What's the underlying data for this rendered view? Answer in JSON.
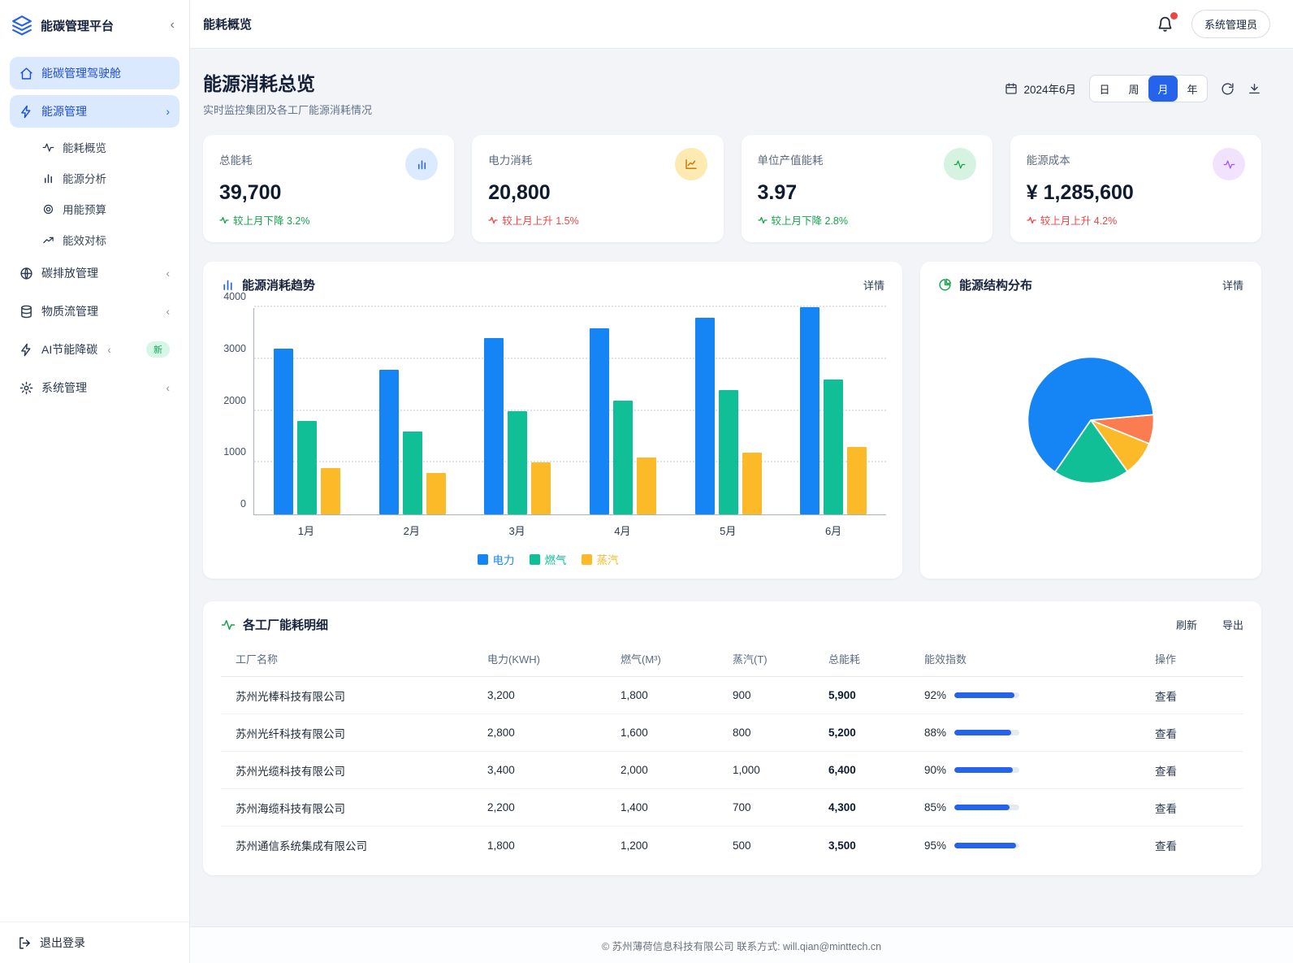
{
  "app": {
    "title": "能碳管理平台"
  },
  "topbar": {
    "page_title": "能耗概览",
    "user": "系统管理员"
  },
  "sidebar": {
    "items": [
      {
        "id": "dashboard",
        "label": "能碳管理驾驶舱",
        "icon": "home",
        "level": 0,
        "active": true
      },
      {
        "id": "energy",
        "label": "能源管理",
        "icon": "bolt",
        "level": 0,
        "active": true,
        "chevron": "right"
      },
      {
        "id": "energy-overview",
        "label": "能耗概览",
        "icon": "activity",
        "level": 1
      },
      {
        "id": "energy-analysis",
        "label": "能源分析",
        "icon": "bars",
        "level": 1
      },
      {
        "id": "energy-budget",
        "label": "用能预算",
        "icon": "target",
        "level": 1
      },
      {
        "id": "efficiency-benchmark",
        "label": "能效对标",
        "icon": "trend",
        "level": 1
      },
      {
        "id": "carbon",
        "label": "碳排放管理",
        "icon": "globe",
        "level": 0,
        "chevron": "left"
      },
      {
        "id": "material-flow",
        "label": "物质流管理",
        "icon": "db",
        "level": 0,
        "chevron": "left"
      },
      {
        "id": "ai-saving",
        "label": "AI节能降碳",
        "icon": "bolt",
        "level": 0,
        "chevron": "left",
        "badge": "新"
      },
      {
        "id": "system",
        "label": "系统管理",
        "icon": "gear",
        "level": 0,
        "chevron": "left"
      }
    ],
    "logout": "退出登录"
  },
  "header": {
    "title": "能源消耗总览",
    "subtitle": "实时监控集团及各工厂能源消耗情况",
    "date": "2024年6月",
    "range_options": [
      "日",
      "周",
      "月",
      "年"
    ],
    "selected_range": "月"
  },
  "kpis": [
    {
      "label": "总能耗",
      "value": "39,700",
      "delta": "较上月下降 3.2%",
      "direction": "down",
      "icon": "bars",
      "icon_bg": "#dbeafe",
      "icon_color": "#2563eb"
    },
    {
      "label": "电力消耗",
      "value": "20,800",
      "delta": "较上月上升 1.5%",
      "direction": "up",
      "icon": "line",
      "icon_bg": "#fdeab0",
      "icon_color": "#c97a10"
    },
    {
      "label": "单位产值能耗",
      "value": "3.97",
      "delta": "较上月下降 2.8%",
      "direction": "down",
      "icon": "activity",
      "icon_bg": "#d5f3e0",
      "icon_color": "#16a34a"
    },
    {
      "label": "能源成本",
      "value": "¥ 1,285,600",
      "delta": "较上月上升 4.2%",
      "direction": "up",
      "icon": "activity",
      "icon_bg": "#f1e3fd",
      "icon_color": "#a855f7"
    }
  ],
  "chart_data": [
    {
      "type": "bar",
      "title": "能源消耗趋势",
      "detail_link": "详情",
      "categories": [
        "1月",
        "2月",
        "3月",
        "4月",
        "5月",
        "6月"
      ],
      "series": [
        {
          "name": "电力",
          "color": "#1585f5",
          "values": [
            3200,
            2800,
            3400,
            3600,
            3800,
            4000
          ]
        },
        {
          "name": "燃气",
          "color": "#10bf95",
          "values": [
            1800,
            1600,
            2000,
            2200,
            2400,
            2600
          ]
        },
        {
          "name": "蒸汽",
          "color": "#fcba29",
          "values": [
            900,
            800,
            1000,
            1100,
            1200,
            1300
          ]
        }
      ],
      "ylim": [
        0,
        4000
      ],
      "yticks": [
        0,
        1000,
        2000,
        3000,
        4000
      ],
      "grid": "dotted-horizontal",
      "legend_position": "bottom"
    },
    {
      "type": "pie",
      "title": "能源结构分布",
      "detail_link": "详情",
      "start_angle_deg_from_top": 85,
      "slices": [
        {
          "color": "#fa7c50",
          "percent": 7.5
        },
        {
          "color": "#fcba29",
          "percent": 9
        },
        {
          "color": "#10bf95",
          "percent": 19.5
        },
        {
          "color": "#1585f5",
          "percent": 64
        }
      ],
      "note": "slices unlabeled in UI; percents estimated from arc angles"
    }
  ],
  "table": {
    "title": "各工厂能耗明细",
    "actions": [
      "刷新",
      "导出"
    ],
    "columns": [
      "工厂名称",
      "电力(KWH)",
      "燃气(M³)",
      "蒸汽(T)",
      "总能耗",
      "能效指数",
      "操作"
    ],
    "rows": [
      {
        "name": "苏州光棒科技有限公司",
        "power": "3,200",
        "gas": "1,800",
        "steam": "900",
        "total": "5,900",
        "efficiency": 92,
        "action": "查看"
      },
      {
        "name": "苏州光纤科技有限公司",
        "power": "2,800",
        "gas": "1,600",
        "steam": "800",
        "total": "5,200",
        "efficiency": 88,
        "action": "查看"
      },
      {
        "name": "苏州光缆科技有限公司",
        "power": "3,400",
        "gas": "2,000",
        "steam": "1,000",
        "total": "6,400",
        "efficiency": 90,
        "action": "查看"
      },
      {
        "name": "苏州海缆科技有限公司",
        "power": "2,200",
        "gas": "1,400",
        "steam": "700",
        "total": "4,300",
        "efficiency": 85,
        "action": "查看"
      },
      {
        "name": "苏州通信系统集成有限公司",
        "power": "1,800",
        "gas": "1,200",
        "steam": "500",
        "total": "3,500",
        "efficiency": 95,
        "action": "查看"
      }
    ]
  },
  "footer": {
    "text": "© 苏州薄荷信息科技有限公司 联系方式: will.qian@minttech.cn"
  },
  "colors": {
    "primary": "#2563eb",
    "sidebar_active_bg": "#dbe9fe",
    "chart_blue": "#1585f5",
    "chart_green": "#10bf95",
    "chart_amber": "#fcba29",
    "pie_orange": "#fa7c50",
    "delta_up_red": "#ef4444",
    "delta_down_green": "#16a34a"
  }
}
